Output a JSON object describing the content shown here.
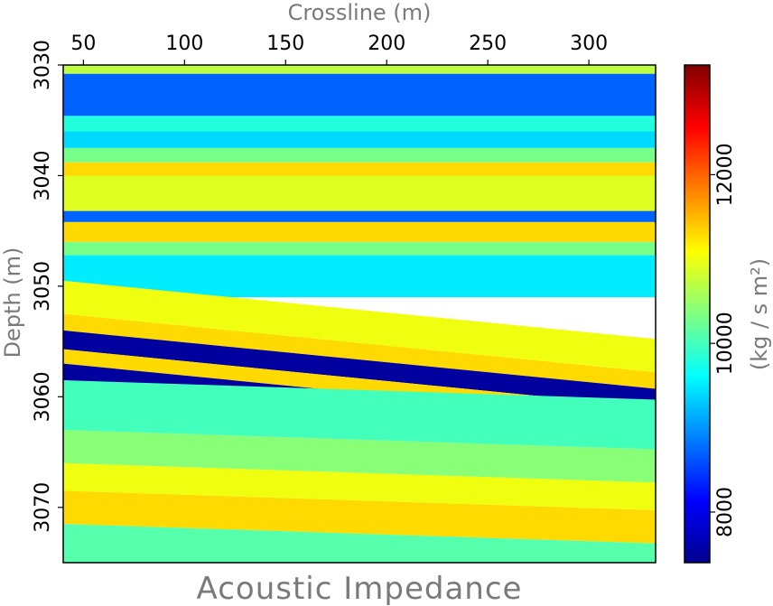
{
  "chart_data": {
    "type": "heatmap",
    "title": "Acoustic Impedance",
    "xlabel": "Crossline (m)",
    "ylabel": "Depth (m)",
    "colorbar_label": "(kg / s m²)",
    "xlim": [
      40,
      333
    ],
    "ylim": [
      3030,
      3075
    ],
    "x_ticks": [
      50,
      100,
      150,
      200,
      250,
      300
    ],
    "y_ticks": [
      3030,
      3040,
      3050,
      3060,
      3070
    ],
    "colorbar_range": [
      7400,
      13300
    ],
    "colorbar_ticks": [
      8000,
      10000,
      12000
    ],
    "colormap": [
      "#00008f",
      "#0000ff",
      "#0080ff",
      "#00ffff",
      "#80ff80",
      "#ffff00",
      "#ff8000",
      "#ff0000",
      "#800000"
    ],
    "layers": [
      {
        "top": 3030.0,
        "base": 3030.8,
        "slope": 0.0,
        "value": 10700
      },
      {
        "top": 3030.8,
        "base": 3034.6,
        "slope": 0.0,
        "value": 8700
      },
      {
        "top": 3034.6,
        "base": 3036.0,
        "slope": 0.0,
        "value": 9800
      },
      {
        "top": 3036.0,
        "base": 3037.5,
        "slope": 0.0,
        "value": 9400
      },
      {
        "top": 3037.5,
        "base": 3038.8,
        "slope": 0.0,
        "value": 10300
      },
      {
        "top": 3038.8,
        "base": 3040.0,
        "slope": 0.0,
        "value": 11300
      },
      {
        "top": 3040.0,
        "base": 3043.2,
        "slope": 0.0,
        "value": 10900
      },
      {
        "top": 3043.2,
        "base": 3044.2,
        "slope": 0.0,
        "value": 8700
      },
      {
        "top": 3044.2,
        "base": 3046.0,
        "slope": 0.0,
        "value": 11300
      },
      {
        "top": 3046.0,
        "base": 3047.2,
        "slope": 0.0,
        "value": 10300
      },
      {
        "top": 3047.2,
        "base": 3051.0,
        "slope": 0.0,
        "value": 9500
      },
      {
        "top": 3049.5,
        "base": 3052.5,
        "slope": 0.018,
        "value": 11000
      },
      {
        "top": 3052.5,
        "base": 3054.0,
        "slope": 0.018,
        "value": 11300
      },
      {
        "top": 3054.0,
        "base": 3055.7,
        "slope": 0.018,
        "value": 7500
      },
      {
        "top": 3055.7,
        "base": 3057.0,
        "slope": 0.018,
        "value": 11300
      },
      {
        "top": 3057.0,
        "base": 3058.5,
        "slope": 0.018,
        "value": 7500
      },
      {
        "top": 3058.5,
        "base": 3063.0,
        "slope": 0.006,
        "value": 10000
      },
      {
        "top": 3063.0,
        "base": 3066.0,
        "slope": 0.006,
        "value": 10400
      },
      {
        "top": 3066.0,
        "base": 3068.5,
        "slope": 0.006,
        "value": 11000
      },
      {
        "top": 3068.5,
        "base": 3071.5,
        "slope": 0.006,
        "value": 11300
      },
      {
        "top": 3071.5,
        "base": 3075.0,
        "slope": 0.006,
        "value": 10100
      }
    ]
  }
}
